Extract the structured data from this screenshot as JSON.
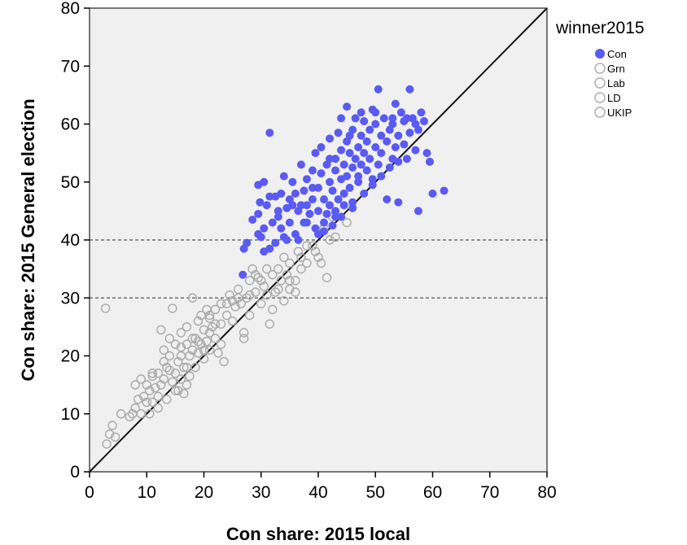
{
  "chart_data": {
    "type": "scatter",
    "title": "",
    "xlabel": "Con share: 2015 local",
    "ylabel": "Con share: 2015 General election",
    "xlim": [
      0,
      80
    ],
    "ylim": [
      0,
      80
    ],
    "xticks": [
      0,
      10,
      20,
      30,
      40,
      50,
      60,
      70,
      80
    ],
    "yticks": [
      0,
      10,
      20,
      30,
      40,
      50,
      60,
      70,
      80
    ],
    "grid": false,
    "background": "#f0f0f0",
    "reference_line": "y = x",
    "hlines": [
      30,
      40
    ],
    "legend": {
      "title": "winner2015",
      "position": "top-right",
      "entries": [
        {
          "label": "Con",
          "filled": true,
          "color": "#5a5af5"
        },
        {
          "label": "Grn",
          "filled": false,
          "color": "#aaaaaa"
        },
        {
          "label": "Lab",
          "filled": false,
          "color": "#aaaaaa"
        },
        {
          "label": "LD",
          "filled": false,
          "color": "#aaaaaa"
        },
        {
          "label": "UKIP",
          "filled": false,
          "color": "#aaaaaa"
        }
      ]
    },
    "series": [
      {
        "name": "Con",
        "color": "#5a5af5",
        "filled": true,
        "points": [
          [
            27,
            38.5
          ],
          [
            27.5,
            39.5
          ],
          [
            26.8,
            34
          ],
          [
            28.5,
            43.5
          ],
          [
            29.5,
            44.5
          ],
          [
            29.8,
            46.5
          ],
          [
            29.5,
            49.5
          ],
          [
            30.5,
            50
          ],
          [
            29.5,
            41
          ],
          [
            30,
            40.5
          ],
          [
            30.5,
            42
          ],
          [
            31.5,
            38.5
          ],
          [
            31,
            46
          ],
          [
            32.5,
            47.5
          ],
          [
            31.5,
            58.5
          ],
          [
            32,
            43
          ],
          [
            33,
            44
          ],
          [
            33.5,
            42
          ],
          [
            33.5,
            48
          ],
          [
            34,
            51
          ],
          [
            34.5,
            45.5
          ],
          [
            34.5,
            40
          ],
          [
            35,
            43
          ],
          [
            35.5,
            46
          ],
          [
            35.5,
            50
          ],
          [
            36,
            48
          ],
          [
            36,
            41
          ],
          [
            36.5,
            45
          ],
          [
            37,
            53
          ],
          [
            37.5,
            48.5
          ],
          [
            37.5,
            43
          ],
          [
            38,
            46
          ],
          [
            38,
            50.5
          ],
          [
            38.5,
            44.5
          ],
          [
            39,
            47
          ],
          [
            39,
            52
          ],
          [
            39.5,
            42
          ],
          [
            39.5,
            55
          ],
          [
            40,
            49
          ],
          [
            40,
            45
          ],
          [
            40.5,
            51.5
          ],
          [
            40.5,
            56
          ],
          [
            41,
            47
          ],
          [
            41,
            43
          ],
          [
            41.5,
            53
          ],
          [
            42,
            50
          ],
          [
            42,
            46
          ],
          [
            42,
            57.5
          ],
          [
            42.5,
            48.5
          ],
          [
            43,
            54
          ],
          [
            43,
            52
          ],
          [
            43,
            44
          ],
          [
            43.5,
            47
          ],
          [
            43.5,
            58.5
          ],
          [
            44,
            50.5
          ],
          [
            44,
            55.5
          ],
          [
            44,
            61
          ],
          [
            44.5,
            53
          ],
          [
            44.5,
            48
          ],
          [
            45,
            57
          ],
          [
            45,
            51
          ],
          [
            45,
            63
          ],
          [
            45.5,
            55
          ],
          [
            45.5,
            49
          ],
          [
            46,
            52.5
          ],
          [
            46,
            59
          ],
          [
            46,
            45.5
          ],
          [
            46.5,
            54
          ],
          [
            46.5,
            61
          ],
          [
            47,
            56
          ],
          [
            47,
            50
          ],
          [
            47.5,
            58
          ],
          [
            47.5,
            53
          ],
          [
            48,
            55
          ],
          [
            48,
            60.5
          ],
          [
            48.5,
            52
          ],
          [
            48.5,
            57
          ],
          [
            49,
            59
          ],
          [
            49,
            54
          ],
          [
            49.5,
            62.5
          ],
          [
            49.5,
            50.5
          ],
          [
            50,
            56
          ],
          [
            50,
            60
          ],
          [
            50.5,
            66
          ],
          [
            50.5,
            53
          ],
          [
            51,
            58
          ],
          [
            51,
            55
          ],
          [
            51.5,
            61
          ],
          [
            52,
            57
          ],
          [
            52,
            47
          ],
          [
            52.5,
            59
          ],
          [
            53,
            54
          ],
          [
            53,
            60
          ],
          [
            53.5,
            56
          ],
          [
            53.5,
            63.5
          ],
          [
            54,
            58
          ],
          [
            54,
            46.5
          ],
          [
            54.5,
            62
          ],
          [
            55,
            56.5
          ],
          [
            55,
            60.5
          ],
          [
            55.5,
            54
          ],
          [
            56,
            66
          ],
          [
            56,
            58.5
          ],
          [
            56.5,
            61
          ],
          [
            57,
            55.5
          ],
          [
            57.5,
            59
          ],
          [
            57.5,
            45
          ],
          [
            58,
            62
          ],
          [
            58.5,
            60.5
          ],
          [
            59,
            55
          ],
          [
            59.5,
            53.5
          ],
          [
            60,
            48
          ],
          [
            62,
            48.5
          ],
          [
            40,
            41
          ],
          [
            41,
            41.5
          ],
          [
            43,
            45
          ],
          [
            44.5,
            46
          ],
          [
            46,
            46.5
          ],
          [
            48,
            48
          ],
          [
            49.5,
            49.5
          ],
          [
            51,
            51
          ],
          [
            52.5,
            52.5
          ],
          [
            54,
            53.5
          ],
          [
            41.5,
            44.5
          ],
          [
            42.5,
            42.5
          ],
          [
            38,
            43
          ],
          [
            36.5,
            40
          ],
          [
            34,
            40.5
          ],
          [
            32.5,
            39.5
          ],
          [
            30.5,
            38
          ],
          [
            44,
            44
          ],
          [
            47,
            51
          ],
          [
            39,
            49
          ],
          [
            37,
            46
          ],
          [
            35,
            47
          ],
          [
            33,
            45
          ],
          [
            31.5,
            47.5
          ],
          [
            42,
            54
          ],
          [
            45.5,
            58
          ],
          [
            47.5,
            62
          ],
          [
            50,
            62
          ],
          [
            53,
            61
          ],
          [
            55.5,
            61
          ],
          [
            57,
            60
          ]
        ]
      },
      {
        "name": "Grn, Lab, LD, UKIP",
        "color": "#aaaaaa",
        "filled": false,
        "points": [
          [
            2.8,
            28.2
          ],
          [
            3,
            4.8
          ],
          [
            3.5,
            6.5
          ],
          [
            4,
            8
          ],
          [
            4.5,
            6
          ],
          [
            5.5,
            10
          ],
          [
            7,
            9.5
          ],
          [
            7.5,
            10
          ],
          [
            8,
            11
          ],
          [
            8.5,
            12.5
          ],
          [
            9,
            16
          ],
          [
            9.5,
            13
          ],
          [
            10,
            15
          ],
          [
            10.5,
            10
          ],
          [
            10.5,
            14
          ],
          [
            11,
            12
          ],
          [
            11,
            16.5
          ],
          [
            11.5,
            14.5
          ],
          [
            12,
            13
          ],
          [
            12,
            17
          ],
          [
            12.5,
            15
          ],
          [
            12.5,
            24.5
          ],
          [
            13,
            16
          ],
          [
            13,
            21
          ],
          [
            13.5,
            18
          ],
          [
            13.5,
            12.5
          ],
          [
            14,
            23
          ],
          [
            14,
            20
          ],
          [
            14.5,
            28.2
          ],
          [
            14.5,
            15.5
          ],
          [
            15,
            22
          ],
          [
            15,
            17
          ],
          [
            15.5,
            19
          ],
          [
            15.5,
            14
          ],
          [
            16,
            20
          ],
          [
            16,
            24
          ],
          [
            16.5,
            18
          ],
          [
            16.5,
            13.5
          ],
          [
            17,
            22
          ],
          [
            17,
            25
          ],
          [
            17.5,
            20
          ],
          [
            17.5,
            16.5
          ],
          [
            18,
            21
          ],
          [
            18,
            30
          ],
          [
            18.5,
            23
          ],
          [
            18.5,
            18
          ],
          [
            19,
            26
          ],
          [
            19,
            20.5
          ],
          [
            19.5,
            22
          ],
          [
            19.5,
            27
          ],
          [
            20,
            24.5
          ],
          [
            20,
            19.5
          ],
          [
            20.5,
            28
          ],
          [
            20.5,
            22.5
          ],
          [
            21,
            26.5
          ],
          [
            21,
            21
          ],
          [
            21.5,
            25
          ],
          [
            22,
            28
          ],
          [
            22,
            23
          ],
          [
            22.5,
            20.5
          ],
          [
            23,
            22
          ],
          [
            23,
            29
          ],
          [
            23.5,
            19
          ],
          [
            24,
            27
          ],
          [
            24.5,
            30.5
          ],
          [
            25,
            26
          ],
          [
            25.5,
            28.5
          ],
          [
            26,
            31.5
          ],
          [
            26.5,
            29
          ],
          [
            27,
            23
          ],
          [
            27,
            24
          ],
          [
            27.5,
            30
          ],
          [
            28,
            33
          ],
          [
            28.5,
            35
          ],
          [
            28,
            27
          ],
          [
            29,
            31
          ],
          [
            29.5,
            33.5
          ],
          [
            30,
            29
          ],
          [
            30.5,
            32
          ],
          [
            31,
            30.5
          ],
          [
            31.5,
            25.5
          ],
          [
            32,
            34
          ],
          [
            32,
            28
          ],
          [
            32.5,
            31
          ],
          [
            33,
            35
          ],
          [
            33.5,
            33
          ],
          [
            34,
            29.5
          ],
          [
            34,
            37
          ],
          [
            34.5,
            34
          ],
          [
            35,
            36
          ],
          [
            35,
            31.5
          ],
          [
            36,
            33
          ],
          [
            36,
            31
          ],
          [
            36.5,
            38
          ],
          [
            37,
            35
          ],
          [
            38,
            36
          ],
          [
            39,
            39
          ],
          [
            39.5,
            38
          ],
          [
            40,
            37
          ],
          [
            40.5,
            36
          ],
          [
            41,
            42
          ],
          [
            42,
            40
          ],
          [
            42.5,
            44
          ],
          [
            43,
            40.5
          ],
          [
            45,
            43
          ],
          [
            41.5,
            33.5
          ],
          [
            8,
            15
          ],
          [
            9,
            10
          ],
          [
            10,
            12
          ],
          [
            11,
            17
          ],
          [
            12,
            11
          ],
          [
            13,
            19
          ],
          [
            14,
            17.5
          ],
          [
            15,
            14
          ],
          [
            16,
            16
          ],
          [
            17,
            18
          ],
          [
            18,
            23
          ],
          [
            19,
            22.5
          ],
          [
            20,
            21
          ],
          [
            21,
            24
          ],
          [
            22,
            25.5
          ],
          [
            24,
            29
          ],
          [
            25,
            29.5
          ],
          [
            26,
            30
          ],
          [
            28,
            30.5
          ],
          [
            29,
            34
          ],
          [
            30,
            33
          ],
          [
            31,
            35
          ],
          [
            33,
            31.5
          ],
          [
            35,
            33
          ],
          [
            37,
            37
          ],
          [
            38,
            39
          ],
          [
            17,
            15
          ],
          [
            16,
            21.5
          ],
          [
            21,
            27
          ],
          [
            23,
            25.5
          ]
        ]
      }
    ]
  }
}
